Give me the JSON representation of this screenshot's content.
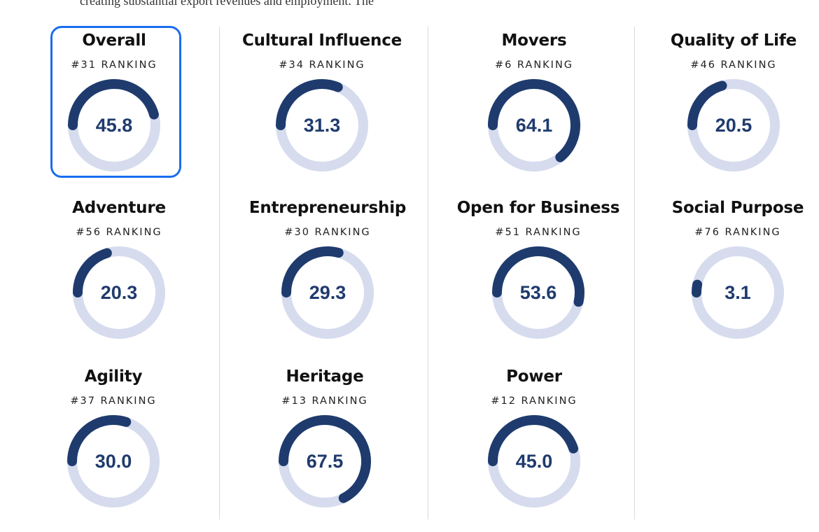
{
  "intro_text": "creating substantial export revenues and employment. The",
  "colors": {
    "arc": "#1f3b6e",
    "track": "#d6dcee",
    "selection": "#1a6ef0"
  },
  "gauge_max": 100,
  "rank_suffix": "RANKING",
  "cards": [
    {
      "title": "Overall",
      "rank": "#31",
      "score": "45.8",
      "fraction": 0.458,
      "selected": true
    },
    {
      "title": "Cultural Influence",
      "rank": "#34",
      "score": "31.3",
      "fraction": 0.313
    },
    {
      "title": "Movers",
      "rank": "#6",
      "score": "64.1",
      "fraction": 0.641
    },
    {
      "title": "Quality of Life",
      "rank": "#46",
      "score": "20.5",
      "fraction": 0.205
    },
    {
      "title": "Adventure",
      "rank": "#56",
      "score": "20.3",
      "fraction": 0.203
    },
    {
      "title": "Entrepreneurship",
      "rank": "#30",
      "score": "29.3",
      "fraction": 0.293
    },
    {
      "title": "Open for Business",
      "rank": "#51",
      "score": "53.6",
      "fraction": 0.536
    },
    {
      "title": "Social Purpose",
      "rank": "#76",
      "score": "3.1",
      "fraction": 0.031
    },
    {
      "title": "Agility",
      "rank": "#37",
      "score": "30.0",
      "fraction": 0.3
    },
    {
      "title": "Heritage",
      "rank": "#13",
      "score": "67.5",
      "fraction": 0.675
    },
    {
      "title": "Power",
      "rank": "#12",
      "score": "45.0",
      "fraction": 0.45
    }
  ]
}
